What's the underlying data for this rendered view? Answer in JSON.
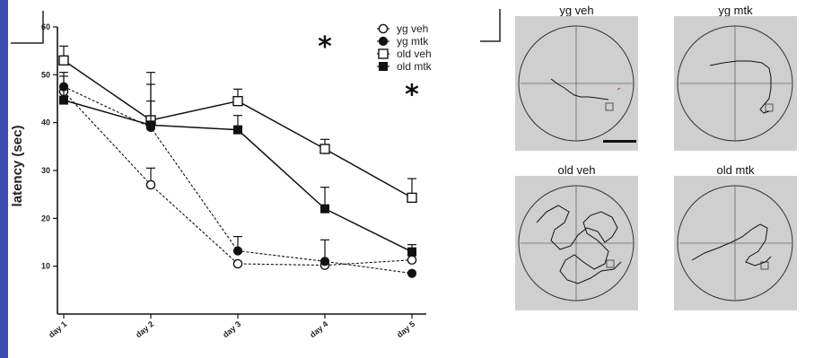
{
  "chart_data": {
    "type": "line",
    "ylabel": "latency (sec)",
    "xlabel": "",
    "categories": [
      "day 1",
      "day 2",
      "day 3",
      "day 4",
      "day 5"
    ],
    "ylim": [
      0,
      60
    ],
    "yticks": [
      10,
      20,
      30,
      40,
      50,
      60
    ],
    "grid": false,
    "legend_position": "top-right",
    "series": [
      {
        "name": "yg veh",
        "marker": "open-circle",
        "line": "dashed",
        "values": [
          46.5,
          27,
          10.5,
          10.2,
          11.3
        ],
        "errors": [
          0,
          3.5,
          0,
          0,
          0
        ]
      },
      {
        "name": "yg mtk",
        "marker": "filled-circle",
        "line": "dashed",
        "values": [
          47.5,
          39,
          13.2,
          11,
          8.5
        ],
        "errors": [
          3,
          9,
          3,
          4.5,
          0
        ]
      },
      {
        "name": "old veh",
        "marker": "open-square",
        "line": "solid",
        "values": [
          53,
          40.5,
          44.5,
          34.5,
          24.3
        ],
        "errors": [
          3,
          10,
          2.5,
          2,
          4
        ]
      },
      {
        "name": "old mtk",
        "marker": "filled-square",
        "line": "solid",
        "values": [
          44.7,
          39.5,
          38.5,
          22,
          13
        ],
        "errors": [
          5,
          5,
          3,
          4.5,
          1.5
        ]
      }
    ],
    "annotations": [
      {
        "text": "*",
        "category": "day 4",
        "y": 57
      },
      {
        "text": "*",
        "category": "day 5",
        "y": 47
      }
    ]
  },
  "panels": [
    {
      "title": "yg veh"
    },
    {
      "title": "yg mtk"
    },
    {
      "title": "old veh"
    },
    {
      "title": "old mtk"
    }
  ],
  "colors": {
    "stripe": "#3a4bb0",
    "panel_bg": "#cfcfcf",
    "ink": "#111111",
    "path_accent": "#cc2222"
  }
}
